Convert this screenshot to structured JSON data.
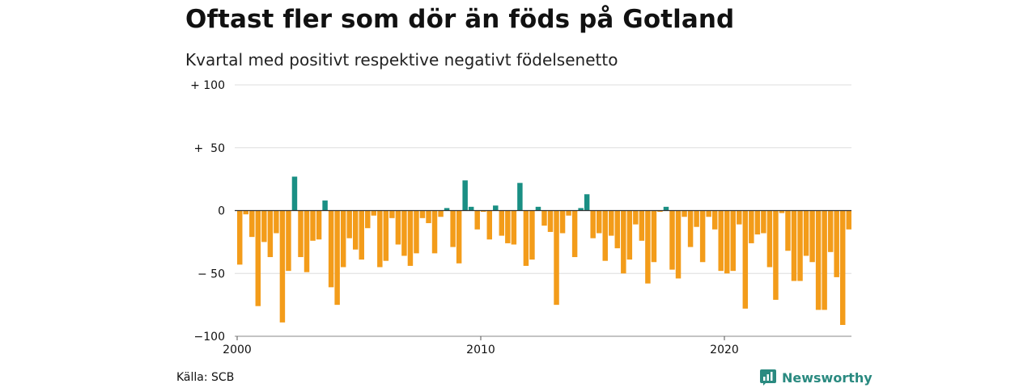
{
  "header": {
    "title": "Oftast fler som dör än föds på Gotland",
    "subtitle": "Kvartal med positivt respektive negativt födelsenetto"
  },
  "footer": {
    "source": "Källa: SCB",
    "brand": "Newsworthy"
  },
  "colors": {
    "positive": "#1a8f84",
    "negative": "#f39c1a",
    "grid": "#dddddd",
    "zero_line": "#333333",
    "brand": "#2a8a80"
  },
  "icons": {
    "brand_logo": "newsworthy-logo-icon"
  },
  "chart_data": {
    "type": "bar",
    "title": "Oftast fler som dör än föds på Gotland",
    "subtitle": "Kvartal med positivt respektive negativt födelsenetto",
    "ylim": [
      -100,
      100
    ],
    "y_ticks": [
      {
        "value": 100,
        "label": "+ 100"
      },
      {
        "value": 50,
        "label": "+  50"
      },
      {
        "value": 0,
        "label": "0"
      },
      {
        "value": -50,
        "label": "− 50"
      },
      {
        "value": -100,
        "label": "−100"
      }
    ],
    "x_ticks": [
      {
        "value": 2000,
        "label": "2000"
      },
      {
        "value": 2010,
        "label": "2010"
      },
      {
        "value": 2020,
        "label": "2020"
      }
    ],
    "start_year": 2000,
    "values": [
      -43,
      -3,
      -21,
      -76,
      -25,
      -37,
      -18,
      -89,
      -48,
      27,
      -37,
      -49,
      -24,
      -23,
      8,
      -61,
      -75,
      -45,
      -22,
      -31,
      -39,
      -14,
      -4,
      -45,
      -40,
      -6,
      -27,
      -36,
      -44,
      -34,
      -6,
      -10,
      -34,
      -5,
      2,
      -29,
      -42,
      24,
      3,
      -15,
      -1,
      -23,
      4,
      -20,
      -26,
      -27,
      22,
      -44,
      -39,
      3,
      -12,
      -17,
      -75,
      -18,
      -4,
      -37,
      2,
      13,
      -22,
      -18,
      -40,
      -20,
      -30,
      -50,
      -39,
      -11,
      -24,
      -58,
      -41,
      -1,
      3,
      -47,
      -54,
      -5,
      -29,
      -13,
      -41,
      -5,
      -15,
      -48,
      -50,
      -48,
      -11,
      -78,
      -26,
      -19,
      -18,
      -45,
      -71,
      -2,
      -32,
      -56,
      -56,
      -36,
      -41,
      -79,
      -79,
      -33,
      -53,
      -91,
      -15
    ]
  }
}
